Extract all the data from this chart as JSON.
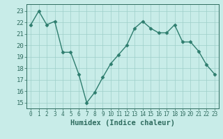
{
  "x": [
    0,
    1,
    2,
    3,
    4,
    5,
    6,
    7,
    8,
    9,
    10,
    11,
    12,
    13,
    14,
    15,
    16,
    17,
    18,
    19,
    20,
    21,
    22,
    23
  ],
  "y": [
    21.8,
    23.0,
    21.8,
    22.1,
    19.4,
    19.4,
    17.5,
    15.0,
    15.9,
    17.2,
    18.4,
    19.2,
    20.0,
    21.5,
    22.1,
    21.5,
    21.1,
    21.1,
    21.8,
    20.3,
    20.3,
    19.5,
    18.3,
    17.5
  ],
  "line_color": "#2e7d6e",
  "marker": "D",
  "markersize": 2.5,
  "linewidth": 1.0,
  "bg_color": "#c8ece8",
  "grid_color": "#9ecfc9",
  "tick_color": "#2e6b5e",
  "xlabel": "Humidex (Indice chaleur)",
  "xlabel_fontsize": 7.5,
  "ytick_labels": [
    "15",
    "16",
    "17",
    "18",
    "19",
    "20",
    "21",
    "22",
    "23"
  ],
  "ylim": [
    14.5,
    23.6
  ],
  "xlim": [
    -0.5,
    23.5
  ],
  "xtick_fontsize": 5.5,
  "ytick_fontsize": 6.5
}
